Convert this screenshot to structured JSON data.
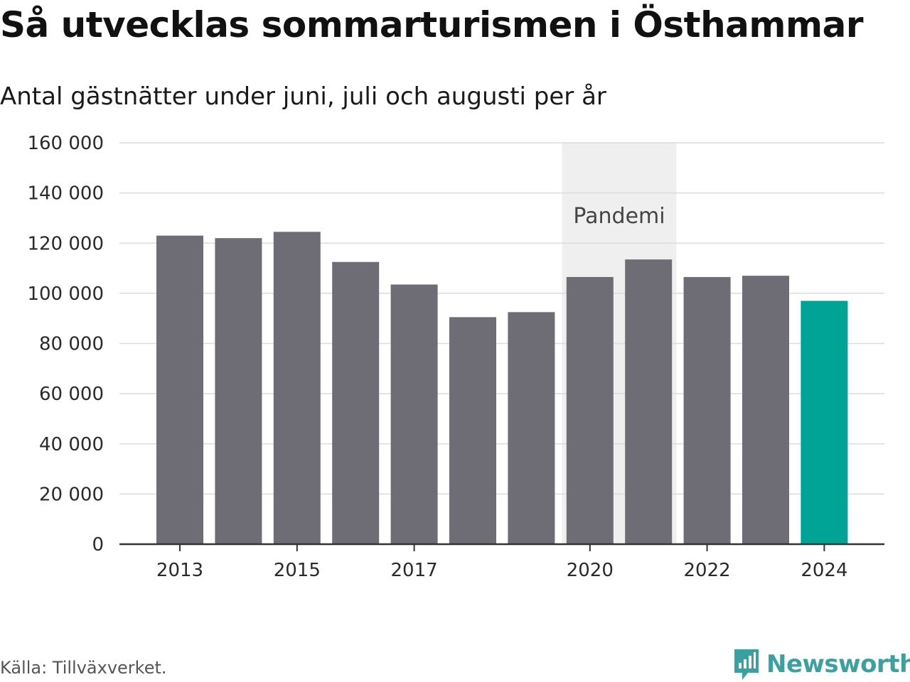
{
  "title": "Så utvecklas sommarturismen i Östhammar",
  "subtitle": "Antal gästnätter under juni, juli och augusti per år",
  "source": "Källa: Tillväxverket.",
  "brand": {
    "name": "Newsworthy",
    "color": "#3aa1a0"
  },
  "chart_data": {
    "type": "bar",
    "categories": [
      "2013",
      "2014",
      "2015",
      "2016",
      "2017",
      "2018",
      "2019",
      "2020",
      "2021",
      "2022",
      "2023",
      "2024"
    ],
    "values": [
      123000,
      122000,
      124500,
      112500,
      103500,
      90500,
      92500,
      106500,
      113500,
      106500,
      107000,
      97000
    ],
    "x_tick_labels": [
      "2013",
      "2015",
      "2017",
      "2020",
      "2022",
      "2024"
    ],
    "y_ticks": [
      0,
      20000,
      40000,
      60000,
      80000,
      100000,
      120000,
      140000,
      160000
    ],
    "y_tick_labels": [
      "0",
      "20 000",
      "40 000",
      "60 000",
      "80 000",
      "100 000",
      "120 000",
      "140 000",
      "160 000"
    ],
    "ylim": [
      0,
      160000
    ],
    "grid": true,
    "colors": {
      "default": "#6e6d75",
      "highlight": "#00a497",
      "annotation_bg": "#efefef"
    },
    "highlight_category": "2024",
    "annotation": {
      "label": "Pandemi",
      "from": "2020",
      "to": "2021"
    }
  }
}
